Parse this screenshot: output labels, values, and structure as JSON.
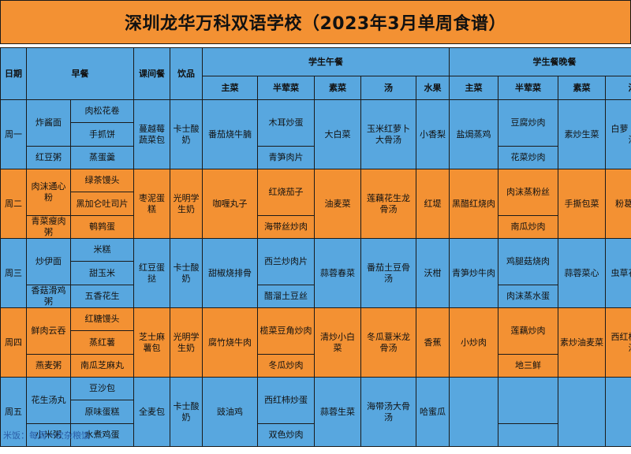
{
  "title": "深圳龙华万科双语学校（2023年3月单周食谱）",
  "headers": {
    "day": "日期",
    "breakfast": "早餐",
    "snack": "课间餐",
    "drink": "饮品",
    "lunch": "学生午餐",
    "dinner": "学生餐晚餐",
    "main": "主菜",
    "half_meat": "半荤菜",
    "veg": "素菜",
    "soup": "汤",
    "fruit": "水果"
  },
  "days": [
    {
      "day": "周一",
      "bf_a": [
        "炸酱面",
        "红豆粥"
      ],
      "bf_b": [
        "肉松花卷",
        "手抓饼",
        "蒸蛋羹"
      ],
      "snack": "蔓越莓蔬菜包",
      "drink": "卡士酸奶",
      "lunch": {
        "main": "番茄烧牛腩",
        "half": [
          "木耳炒蛋",
          "青笋肉片"
        ],
        "veg": "大白菜",
        "soup": "玉米红萝卜大骨汤",
        "fruit": "小香梨"
      },
      "dinner": {
        "main": "盐焗蒸鸡",
        "half": [
          "豆腐炒肉",
          "花菜炒肉"
        ],
        "veg": "素炒生菜",
        "soup": "白萝卜龙骨汤"
      }
    },
    {
      "day": "周二",
      "bf_a": [
        "肉沫通心粉",
        "青菜瘦肉粥"
      ],
      "bf_b": [
        "绿茶馒头",
        "黑加仑吐司片",
        "鹌鹑蛋"
      ],
      "snack": "枣泥蛋糕",
      "drink": "光明学生奶",
      "lunch": {
        "main": "咖喱丸子",
        "half": [
          "红烧茄子",
          "海带丝炒肉"
        ],
        "veg": "油麦菜",
        "soup": "莲藕花生龙骨汤",
        "fruit": "红堤"
      },
      "dinner": {
        "main": "黑醋红烧肉",
        "half": [
          "肉沫蒸粉丝",
          "南瓜炒肉"
        ],
        "veg": "手撕包菜",
        "soup": "粉葛鸡汤"
      }
    },
    {
      "day": "周三",
      "bf_a": [
        "炒伊面",
        "香菇滑鸡粥"
      ],
      "bf_b": [
        "米糕",
        "甜玉米",
        "五香花生"
      ],
      "snack": "红豆蛋挞",
      "drink": "卡士酸奶",
      "lunch": {
        "main": "甜椒烧排骨",
        "half": [
          "西兰炒肉片",
          "醋溜土豆丝"
        ],
        "veg": "蒜蓉春菜",
        "soup": "番茄土豆骨汤",
        "fruit": "沃柑"
      },
      "dinner": {
        "main": "青笋炒牛肉",
        "half": [
          "鸡腿菇烧肉",
          "肉沫蒸水蛋"
        ],
        "veg": "蒜蓉菜心",
        "soup": "虫草花鸡汤"
      }
    },
    {
      "day": "周四",
      "bf_a": [
        "鲜肉云吞",
        "燕麦粥"
      ],
      "bf_b": [
        "红糖馒头",
        "蒸红薯",
        "南瓜芝麻丸"
      ],
      "snack": "芝士麻薯包",
      "drink": "光明学生奶",
      "lunch": {
        "main": "腐竹烧牛肉",
        "half": [
          "榄菜豆角炒肉",
          "冬瓜炒肉"
        ],
        "veg": "清炒小白菜",
        "soup": "冬瓜薏米龙骨汤",
        "fruit": "香蕉"
      },
      "dinner": {
        "main": "小炒肉",
        "half": [
          "莲藕炒肉",
          "地三鲜"
        ],
        "veg": "素炒油麦菜",
        "soup": "西红柿鸡蛋汤"
      }
    },
    {
      "day": "周五",
      "bf_a": [
        "花生汤丸",
        "小米粥"
      ],
      "bf_b": [
        "豆沙包",
        "原味蛋糕",
        "水煮鸡蛋"
      ],
      "snack": "全麦包",
      "drink": "卡士酸奶",
      "lunch": {
        "main": "豉油鸡",
        "half": [
          "西红柿炒蛋",
          "双色炒肉"
        ],
        "veg": "蒜蓉生菜",
        "soup": "海带汤大骨汤",
        "fruit": "哈蜜瓜"
      },
      "dinner": {
        "main": "",
        "half": [
          "",
          ""
        ],
        "veg": "",
        "soup": ""
      }
    }
  ],
  "note": "米饭：每周一次杂粮饭",
  "colors": {
    "orange": "#f39133",
    "blue": "#58a7df",
    "note": "#2b5fa8"
  }
}
